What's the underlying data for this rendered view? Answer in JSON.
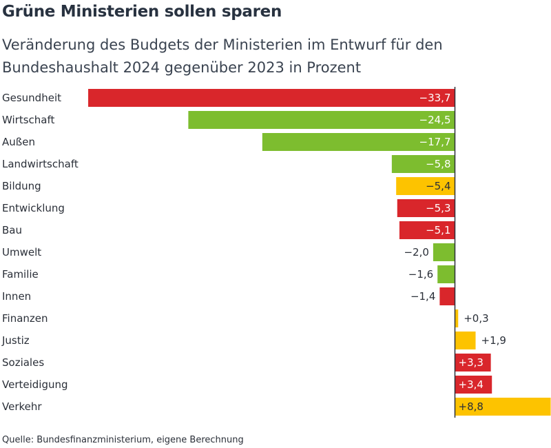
{
  "title": "Grüne Ministerien sollen sparen",
  "subtitle": "Veränderung des Budgets der Ministerien im Entwurf für den Bundeshaushalt 2024 gegenüber 2023 in Prozent",
  "source": "Quelle: Bundesfinanzministerium, eigene Berechnung",
  "colors": {
    "red": "#d9262b",
    "green": "#7dbd2f",
    "yellow": "#fdc300",
    "zero_line": "#2a2f38",
    "text": "#2a2f38"
  },
  "chart_data": {
    "type": "bar",
    "orientation": "horizontal",
    "title": "Grüne Ministerien sollen sparen",
    "subtitle": "Veränderung des Budgets der Ministerien im Entwurf für den Bundeshaushalt 2024 gegenüber 2023 in Prozent",
    "xlim": [
      -33.7,
      8.8
    ],
    "grid": false,
    "legend": "none",
    "categories": [
      "Gesundheit",
      "Wirtschaft",
      "Außen",
      "Landwirtschaft",
      "Bildung",
      "Entwicklung",
      "Bau",
      "Umwelt",
      "Familie",
      "Innen",
      "Finanzen",
      "Justiz",
      "Soziales",
      "Verteidigung",
      "Verkehr"
    ],
    "values": [
      -33.7,
      -24.5,
      -17.7,
      -5.8,
      -5.4,
      -5.3,
      -5.1,
      -2.0,
      -1.6,
      -1.4,
      0.3,
      1.9,
      3.3,
      3.4,
      8.8
    ],
    "value_labels": [
      "−33,7",
      "−24,5",
      "−17,7",
      "−5,8",
      "−5,4",
      "−5,3",
      "−5,1",
      "−2,0",
      "−1,6",
      "−1,4",
      "+0,3",
      "+1,9",
      "+3,3",
      "+3,4",
      "+8,8"
    ],
    "bar_colors": [
      "red",
      "green",
      "green",
      "green",
      "yellow",
      "red",
      "red",
      "green",
      "green",
      "red",
      "yellow",
      "yellow",
      "red",
      "red",
      "yellow"
    ]
  }
}
